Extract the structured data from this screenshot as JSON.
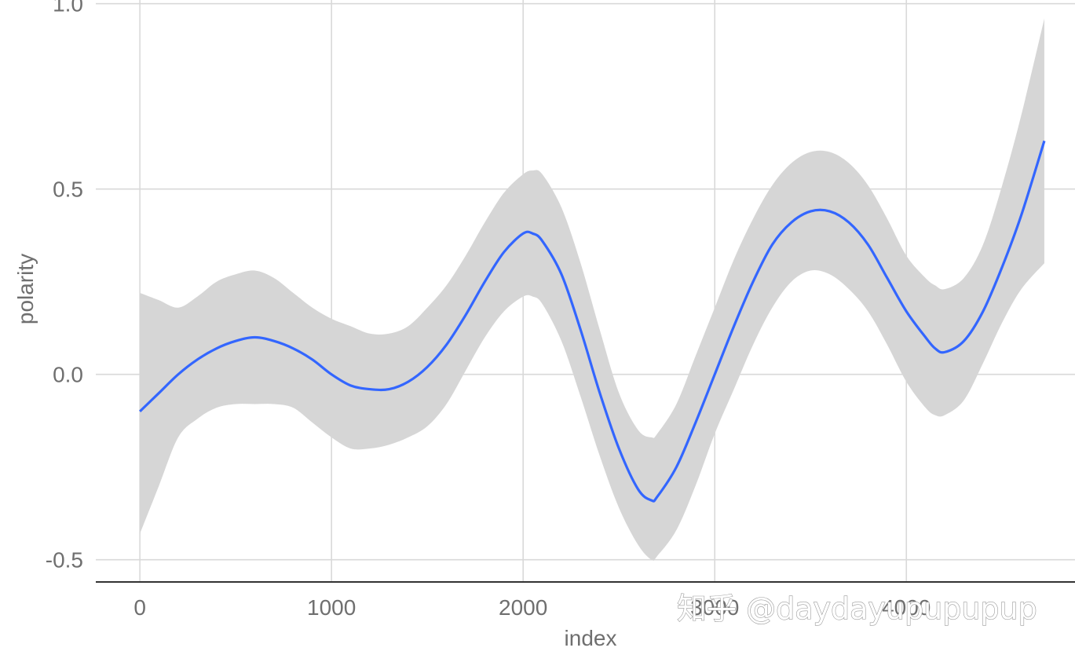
{
  "chart_data": {
    "type": "line",
    "xlabel": "index",
    "ylabel": "polarity",
    "xlim": [
      -230,
      4880
    ],
    "ylim": [
      -0.56,
      1.01
    ],
    "x_ticks": [
      0,
      1000,
      2000,
      3000,
      4000
    ],
    "x_tick_labels": [
      "0",
      "1000",
      "2000",
      "3000",
      "4000"
    ],
    "y_ticks": [
      -0.5,
      0.0,
      0.5,
      1.0
    ],
    "y_tick_labels": [
      "-0.5",
      "0.0",
      "0.5",
      "1.0"
    ],
    "grid": true,
    "legend": "none",
    "colors": {
      "line": "#3366ff",
      "band": "#d6d6d6",
      "grid": "#d9d9d9",
      "axis": "#333333"
    },
    "series": [
      {
        "x": [
          0,
          100,
          200,
          300,
          400,
          500,
          600,
          700,
          800,
          900,
          1000,
          1100,
          1200,
          1300,
          1400,
          1500,
          1600,
          1700,
          1800,
          1900,
          2000,
          2050,
          2100,
          2200,
          2300,
          2400,
          2500,
          2600,
          2670,
          2700,
          2800,
          2900,
          3000,
          3100,
          3200,
          3300,
          3400,
          3500,
          3600,
          3700,
          3800,
          3900,
          4000,
          4100,
          4150,
          4200,
          4300,
          4400,
          4500,
          4600,
          4720
        ],
        "y": [
          -0.1,
          -0.05,
          0.0,
          0.04,
          0.07,
          0.09,
          0.1,
          0.09,
          0.07,
          0.04,
          0.0,
          -0.03,
          -0.04,
          -0.04,
          -0.02,
          0.02,
          0.08,
          0.16,
          0.25,
          0.33,
          0.38,
          0.38,
          0.36,
          0.27,
          0.12,
          -0.05,
          -0.2,
          -0.31,
          -0.34,
          -0.33,
          -0.25,
          -0.13,
          0.0,
          0.13,
          0.25,
          0.35,
          0.41,
          0.44,
          0.44,
          0.41,
          0.35,
          0.26,
          0.17,
          0.1,
          0.07,
          0.06,
          0.09,
          0.17,
          0.29,
          0.43,
          0.63
        ],
        "upper": [
          0.22,
          0.2,
          0.18,
          0.21,
          0.25,
          0.27,
          0.28,
          0.26,
          0.22,
          0.18,
          0.15,
          0.13,
          0.11,
          0.11,
          0.13,
          0.18,
          0.24,
          0.32,
          0.41,
          0.49,
          0.54,
          0.55,
          0.54,
          0.45,
          0.3,
          0.12,
          -0.05,
          -0.15,
          -0.17,
          -0.16,
          -0.08,
          0.05,
          0.18,
          0.31,
          0.42,
          0.51,
          0.57,
          0.6,
          0.6,
          0.57,
          0.51,
          0.42,
          0.32,
          0.26,
          0.24,
          0.23,
          0.26,
          0.35,
          0.51,
          0.7,
          0.96
        ],
        "lower": [
          -0.43,
          -0.3,
          -0.17,
          -0.12,
          -0.09,
          -0.08,
          -0.08,
          -0.08,
          -0.09,
          -0.13,
          -0.17,
          -0.2,
          -0.2,
          -0.19,
          -0.17,
          -0.14,
          -0.08,
          0.01,
          0.1,
          0.17,
          0.21,
          0.21,
          0.19,
          0.09,
          -0.06,
          -0.22,
          -0.36,
          -0.46,
          -0.5,
          -0.49,
          -0.42,
          -0.3,
          -0.16,
          -0.04,
          0.08,
          0.18,
          0.25,
          0.28,
          0.27,
          0.23,
          0.17,
          0.08,
          -0.02,
          -0.09,
          -0.11,
          -0.11,
          -0.07,
          0.03,
          0.14,
          0.23,
          0.3
        ]
      }
    ]
  },
  "watermark": "知乎 @daydayupupupup"
}
